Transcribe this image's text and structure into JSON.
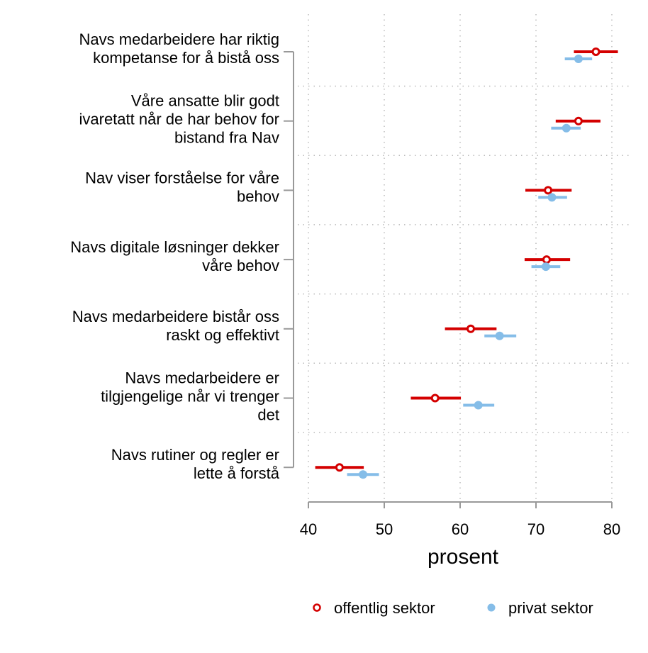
{
  "chart_data": {
    "type": "dot-interval",
    "xlabel": "prosent",
    "xlim": [
      40,
      81
    ],
    "xticks": [
      40,
      50,
      60,
      70,
      80
    ],
    "grid": "dotted",
    "legend_position": "bottom",
    "colors": {
      "offentlig sektor": "#d40000",
      "privat sektor": "#85bde8"
    },
    "categories": [
      [
        "Navs medarbeidere har riktig",
        "kompetanse for å bistå oss"
      ],
      [
        "Våre ansatte blir godt",
        "ivaretatt når de har behov for",
        "bistand fra Nav"
      ],
      [
        "Nav viser forståelse for våre",
        "behov"
      ],
      [
        "Navs digitale løsninger dekker",
        "våre behov"
      ],
      [
        "Navs medarbeidere bistår oss",
        "raskt og effektivt"
      ],
      [
        "Navs medarbeidere er",
        "tilgjengelige når vi trenger",
        "det"
      ],
      [
        "Navs rutiner og regler er",
        "lette å forstå"
      ]
    ],
    "series": [
      {
        "name": "offentlig sektor",
        "marker": "open-circle",
        "values": [
          77.9,
          75.6,
          71.6,
          71.4,
          61.4,
          56.7,
          44.1
        ],
        "lower": [
          75.0,
          72.6,
          68.6,
          68.5,
          58.0,
          53.5,
          40.9
        ],
        "upper": [
          80.8,
          78.5,
          74.7,
          74.5,
          64.8,
          60.1,
          47.3
        ]
      },
      {
        "name": "privat sektor",
        "marker": "filled-circle",
        "values": [
          75.6,
          74.0,
          72.1,
          71.3,
          65.2,
          62.4,
          47.2
        ],
        "lower": [
          73.8,
          72.0,
          70.3,
          69.4,
          63.2,
          60.4,
          45.1
        ],
        "upper": [
          77.4,
          75.9,
          74.1,
          73.2,
          67.4,
          64.5,
          49.3
        ]
      }
    ]
  }
}
